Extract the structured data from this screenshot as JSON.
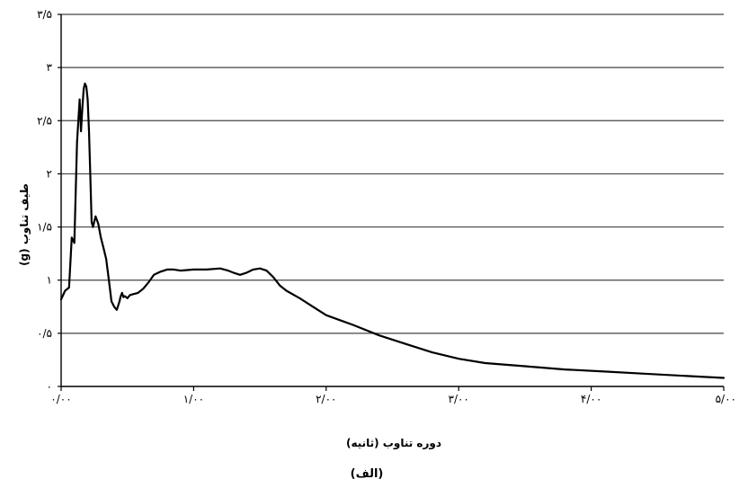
{
  "chart_data": {
    "type": "line",
    "xlabel": "دوره تناوب (ثانیه)",
    "ylabel": "طیف تناوب (g)",
    "caption": "(الف)",
    "xlim": [
      0,
      5
    ],
    "ylim": [
      0,
      3.5
    ],
    "grid": "horizontal",
    "x_ticks": [
      0,
      1,
      2,
      3,
      4,
      5
    ],
    "x_tick_labels": [
      "۰/۰۰",
      "۱/۰۰",
      "۲/۰۰",
      "۳/۰۰",
      "۴/۰۰",
      "۵/۰۰"
    ],
    "y_ticks": [
      0,
      0.5,
      1,
      1.5,
      2,
      2.5,
      3,
      3.5
    ],
    "y_tick_labels": [
      "۰",
      "۰/۵",
      "۱",
      "۱/۵",
      "۲",
      "۲/۵",
      "۳",
      "۳/۵"
    ],
    "line_color": "#000000",
    "series": [
      {
        "x": [
          0.0,
          0.03,
          0.06,
          0.08,
          0.1,
          0.12,
          0.14,
          0.15,
          0.16,
          0.17,
          0.18,
          0.19,
          0.2,
          0.21,
          0.22,
          0.23,
          0.24,
          0.26,
          0.28,
          0.3,
          0.32,
          0.34,
          0.36,
          0.38,
          0.4,
          0.42,
          0.44,
          0.45,
          0.46,
          0.47,
          0.48,
          0.5,
          0.52,
          0.55,
          0.58,
          0.62,
          0.66,
          0.7,
          0.75,
          0.8,
          0.85,
          0.9,
          1.0,
          1.1,
          1.2,
          1.26,
          1.3,
          1.35,
          1.4,
          1.45,
          1.5,
          1.55,
          1.6,
          1.65,
          1.7,
          1.8,
          1.9,
          2.0,
          2.2,
          2.4,
          2.6,
          2.8,
          3.0,
          3.2,
          3.5,
          3.8,
          4.1,
          4.4,
          4.7,
          5.0
        ],
        "y": [
          0.82,
          0.9,
          0.93,
          1.4,
          1.35,
          2.3,
          2.7,
          2.4,
          2.62,
          2.8,
          2.85,
          2.82,
          2.7,
          2.4,
          2.0,
          1.55,
          1.5,
          1.6,
          1.53,
          1.4,
          1.3,
          1.2,
          1.0,
          0.8,
          0.75,
          0.72,
          0.8,
          0.85,
          0.88,
          0.84,
          0.85,
          0.83,
          0.86,
          0.87,
          0.88,
          0.92,
          0.98,
          1.05,
          1.08,
          1.1,
          1.1,
          1.09,
          1.1,
          1.1,
          1.11,
          1.09,
          1.07,
          1.05,
          1.07,
          1.1,
          1.11,
          1.09,
          1.03,
          0.95,
          0.9,
          0.83,
          0.75,
          0.67,
          0.58,
          0.48,
          0.4,
          0.32,
          0.26,
          0.22,
          0.19,
          0.16,
          0.14,
          0.12,
          0.1,
          0.08
        ]
      }
    ]
  }
}
